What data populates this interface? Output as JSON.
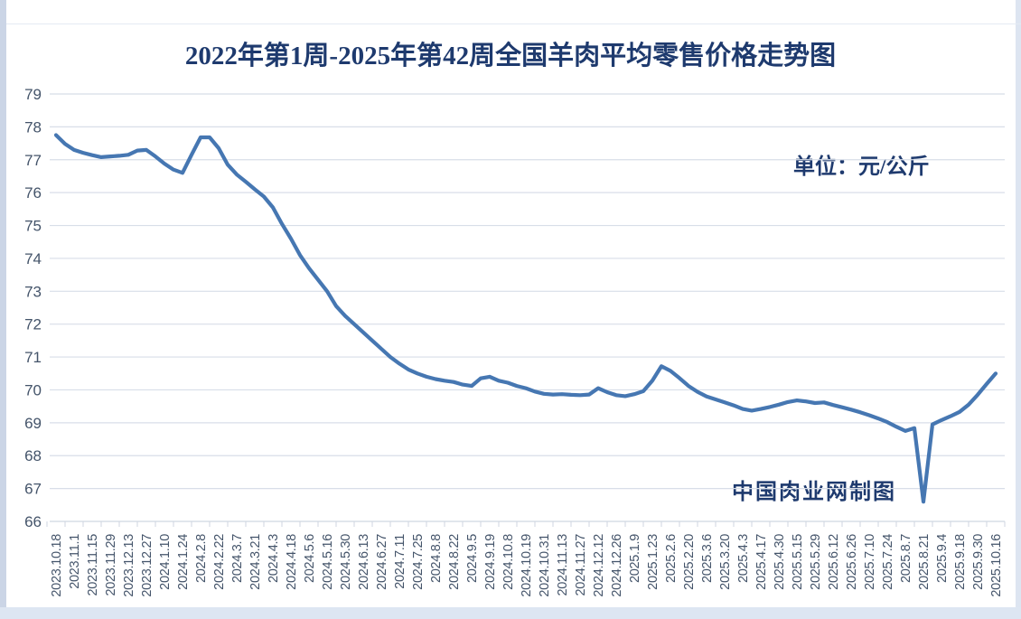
{
  "page": {
    "title": "2022年第1周-2025年第42周全国羊肉平均零售价格走势图",
    "unit_label": "单位：元/公斤",
    "watermark": "中国肉业网制图"
  },
  "colors": {
    "title_text": "#1e3a6e",
    "annotation_text": "#1e3a6e",
    "line": "#4677b2",
    "gridline": "#d8dee8",
    "axis_text": "#44546a",
    "axis_line": "#cfd6e0",
    "page_frame": "#cbd5e6"
  },
  "chart_data": {
    "type": "line",
    "title": "2022年第1周-2025年第42周全国羊肉平均零售价格走势图",
    "unit": "元/公斤",
    "ylabel": "",
    "xlabel": "",
    "ylim": [
      66,
      79
    ],
    "ytick_step": 1,
    "grid": true,
    "legend_position": "none",
    "note": "weekly average mutton retail price, CNY per kg; x labels mark every second weekly point",
    "x_label_every": 2,
    "categories": [
      "2023.10.18",
      "2023.11.1",
      "2023.11.15",
      "2023.11.29",
      "2023.12.13",
      "2023.12.27",
      "2024.1.10",
      "2024.1.24",
      "2024.2.8",
      "2024.2.22",
      "2024.3.7",
      "2024.3.21",
      "2024.4.3",
      "2024.4.18",
      "2024.5.6",
      "2024.5.16",
      "2024.5.30",
      "2024.6.13",
      "2024.6.27",
      "2024.7.11",
      "2024.7.25",
      "2024.8.8",
      "2024.8.22",
      "2024.9.5",
      "2024.9.19",
      "2024.10.8",
      "2024.10.19",
      "2024.10.31",
      "2024.11.13",
      "2024.11.27",
      "2024.12.12",
      "2024.12.26",
      "2025.1.9",
      "2025.1.23",
      "2025.2.6",
      "2025.2.20",
      "2025.3.6",
      "2025.3.20",
      "2025.4.3",
      "2025.4.17",
      "2025.4.30",
      "2025.5.15",
      "2025.5.29",
      "2025.6.12",
      "2025.6.26",
      "2025.7.10",
      "2025.7.24",
      "2025.8.7",
      "2025.8.21",
      "2025.9.4",
      "2025.9.18",
      "2025.9.30",
      "2025.10.16"
    ],
    "values": [
      77.75,
      77.48,
      77.3,
      77.21,
      77.14,
      77.08,
      77.1,
      77.12,
      77.15,
      77.28,
      77.3,
      77.1,
      76.88,
      76.7,
      76.6,
      77.15,
      77.68,
      77.68,
      77.35,
      76.85,
      76.55,
      76.33,
      76.1,
      75.88,
      75.55,
      75.05,
      74.6,
      74.1,
      73.7,
      73.35,
      73.0,
      72.55,
      72.25,
      72.0,
      71.75,
      71.5,
      71.25,
      71.0,
      70.8,
      70.62,
      70.5,
      70.4,
      70.33,
      70.28,
      70.24,
      70.16,
      70.12,
      70.35,
      70.4,
      70.28,
      70.22,
      70.12,
      70.05,
      69.95,
      69.88,
      69.86,
      69.87,
      69.85,
      69.84,
      69.86,
      70.05,
      69.93,
      69.84,
      69.81,
      69.87,
      69.96,
      70.28,
      70.72,
      70.58,
      70.36,
      70.12,
      69.94,
      69.8,
      69.71,
      69.62,
      69.53,
      69.42,
      69.37,
      69.42,
      69.48,
      69.55,
      69.63,
      69.68,
      69.65,
      69.6,
      69.62,
      69.54,
      69.47,
      69.4,
      69.32,
      69.23,
      69.13,
      69.02,
      68.88,
      68.75,
      68.84,
      66.6,
      68.95,
      69.08,
      69.2,
      69.33,
      69.55,
      69.85,
      70.18,
      70.5
    ]
  }
}
